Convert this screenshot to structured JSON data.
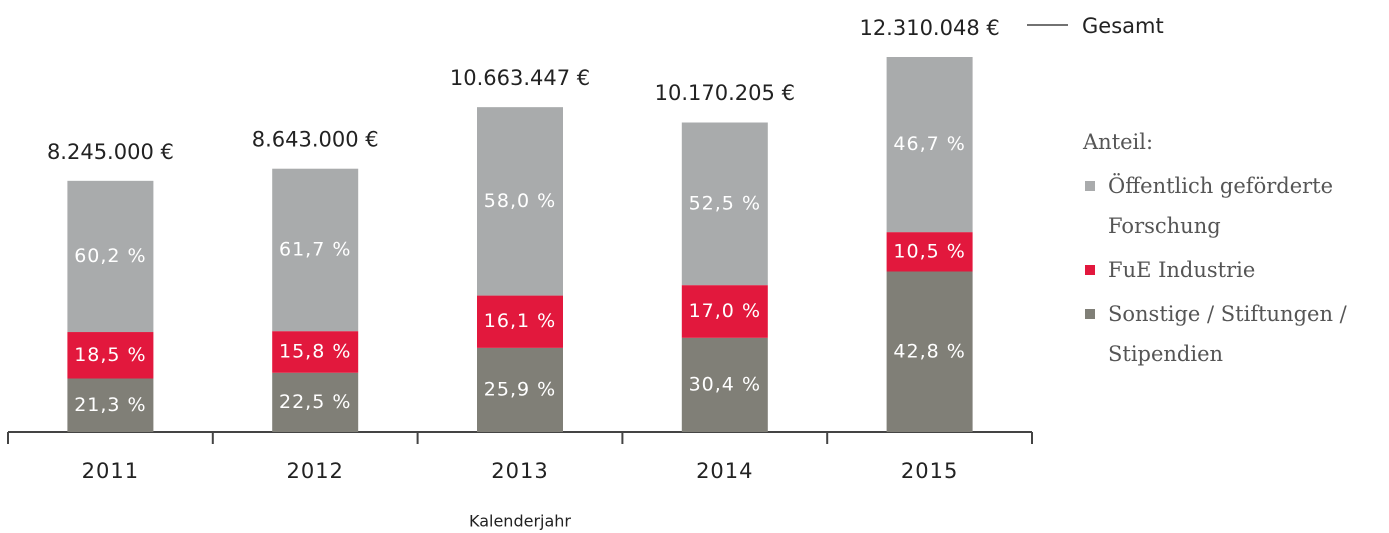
{
  "chart_data": {
    "type": "stacked_bar",
    "categories": [
      "2011",
      "2012",
      "2013",
      "2014",
      "2015"
    ],
    "values": [
      8245000,
      8643000,
      10663447,
      10170205,
      12310048
    ],
    "value_labels": [
      "8.245.000 €",
      "8.643.000 €",
      "10.663.447 €",
      "10.170.205 €",
      "12.310.048 €"
    ],
    "annotation": "Gesamt",
    "x_label": "Kalenderjahr",
    "legend_title": "Anteil:",
    "series": [
      {
        "name": "Sonstige / Stiftungen / Stipendien",
        "color": "#807f77",
        "values": [
          21.3,
          22.5,
          25.9,
          30.4,
          42.8
        ],
        "value_labels": [
          "21,3 %",
          "22,5 %",
          "25,9 %",
          "30,4 %",
          "42,8 %"
        ]
      },
      {
        "name": "FuE Industrie",
        "color": "#e2183d",
        "values": [
          18.5,
          15.8,
          16.1,
          17.0,
          10.5
        ],
        "value_labels": [
          "18,5 %",
          "15,8 %",
          "16,1 %",
          "17,0 %",
          "10,5 %"
        ]
      },
      {
        "name": "Öffentlich geförderte Forschung",
        "color": "#a9abac",
        "values": [
          60.2,
          61.7,
          58.0,
          52.5,
          46.7
        ],
        "value_labels": [
          "60,2 %",
          "61,7 %",
          "58,0 %",
          "52,5 %",
          "46,7 %"
        ]
      }
    ]
  }
}
